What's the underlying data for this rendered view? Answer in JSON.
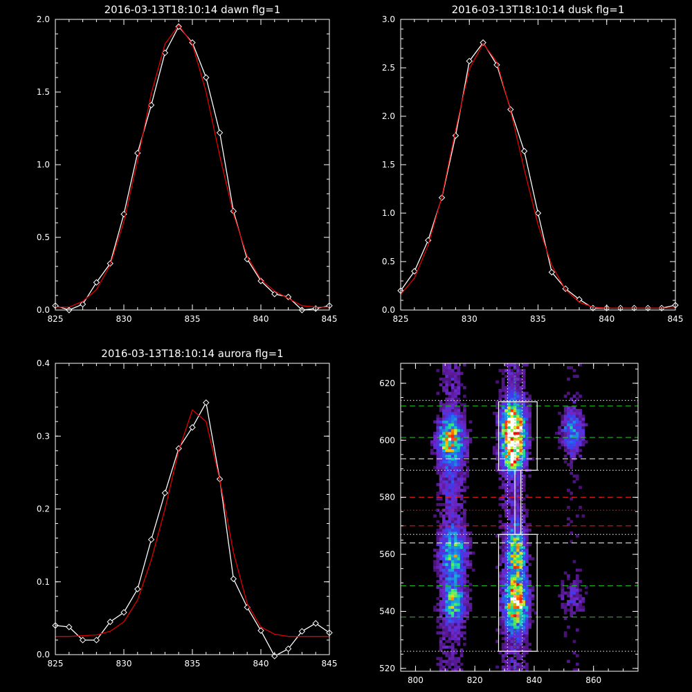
{
  "chart_data": [
    {
      "type": "line",
      "title": "2016-03-13T18:10:14 dawn flg=1",
      "xlim": [
        825,
        845
      ],
      "ylim": [
        0,
        2.0
      ],
      "xticks": [
        825,
        830,
        835,
        840,
        845
      ],
      "yticks": [
        0.0,
        0.5,
        1.0,
        1.5,
        2.0
      ],
      "ytick_labels": [
        "0.0",
        "0.5",
        "1.0",
        "1.5",
        "2.0"
      ],
      "series": [
        {
          "color": "#ffffff",
          "markers": "diamond",
          "x": [
            825,
            826,
            827,
            828,
            829,
            830,
            831,
            832,
            833,
            834,
            835,
            836,
            837,
            838,
            839,
            840,
            841,
            842,
            843,
            844,
            845
          ],
          "y": [
            0.03,
            0.0,
            0.04,
            0.19,
            0.32,
            0.66,
            1.08,
            1.41,
            1.77,
            1.95,
            1.84,
            1.6,
            1.22,
            0.68,
            0.35,
            0.2,
            0.11,
            0.09,
            0.0,
            0.01,
            0.03
          ]
        },
        {
          "color": "#e00000",
          "markers": "none",
          "x": [
            825,
            826,
            827,
            828,
            829,
            830,
            831,
            832,
            833,
            834,
            835,
            836,
            837,
            838,
            839,
            840,
            841,
            842,
            843,
            844,
            845
          ],
          "y": [
            0.02,
            0.02,
            0.06,
            0.14,
            0.31,
            0.61,
            1.03,
            1.49,
            1.83,
            1.96,
            1.83,
            1.5,
            1.06,
            0.66,
            0.37,
            0.21,
            0.13,
            0.08,
            0.03,
            0.02,
            0.02
          ]
        }
      ]
    },
    {
      "type": "line",
      "title": "2016-03-13T18:10:14 dusk flg=1",
      "xlim": [
        825,
        845
      ],
      "ylim": [
        0,
        3.0
      ],
      "xticks": [
        825,
        830,
        835,
        840,
        845
      ],
      "yticks": [
        0.0,
        0.5,
        1.0,
        1.5,
        2.0,
        2.5,
        3.0
      ],
      "ytick_labels": [
        "0.0",
        "0.5",
        "1.0",
        "1.5",
        "2.0",
        "2.5",
        "3.0"
      ],
      "series": [
        {
          "color": "#ffffff",
          "markers": "diamond",
          "x": [
            825,
            826,
            827,
            828,
            829,
            830,
            831,
            832,
            833,
            834,
            835,
            836,
            837,
            838,
            839,
            840,
            841,
            842,
            843,
            844,
            845
          ],
          "y": [
            0.2,
            0.4,
            0.72,
            1.16,
            1.8,
            2.57,
            2.76,
            2.53,
            2.07,
            1.64,
            1.0,
            0.39,
            0.22,
            0.11,
            0.02,
            0.02,
            0.02,
            0.02,
            0.02,
            0.02,
            0.05
          ]
        },
        {
          "color": "#e00000",
          "markers": "none",
          "x": [
            825,
            826,
            827,
            828,
            829,
            830,
            831,
            832,
            833,
            834,
            835,
            836,
            837,
            838,
            839,
            840,
            841,
            842,
            843,
            844,
            845
          ],
          "y": [
            0.16,
            0.33,
            0.67,
            1.17,
            1.86,
            2.49,
            2.75,
            2.56,
            2.06,
            1.45,
            0.88,
            0.46,
            0.21,
            0.08,
            0.03,
            0.02,
            0.02,
            0.02,
            0.02,
            0.02,
            0.02
          ]
        }
      ]
    },
    {
      "type": "line",
      "title": "2016-03-13T18:10:14 aurora flg=1",
      "xlim": [
        825,
        845
      ],
      "ylim": [
        0,
        0.4
      ],
      "xticks": [
        825,
        830,
        835,
        840,
        845
      ],
      "yticks": [
        0.0,
        0.1,
        0.2,
        0.3,
        0.4
      ],
      "ytick_labels": [
        "0.0",
        "0.1",
        "0.2",
        "0.3",
        "0.4"
      ],
      "series": [
        {
          "color": "#ffffff",
          "markers": "diamond",
          "x": [
            825,
            826,
            827,
            828,
            829,
            830,
            831,
            832,
            833,
            834,
            835,
            836,
            837,
            838,
            839,
            840,
            841,
            842,
            843,
            844,
            845
          ],
          "y": [
            0.04,
            0.038,
            0.02,
            0.02,
            0.045,
            0.058,
            0.09,
            0.158,
            0.222,
            0.283,
            0.312,
            0.346,
            0.241,
            0.104,
            0.065,
            0.033,
            -0.002,
            0.008,
            0.032,
            0.043,
            0.03
          ]
        },
        {
          "color": "#e00000",
          "markers": "none",
          "x": [
            825,
            826,
            827,
            828,
            829,
            830,
            831,
            832,
            833,
            834,
            835,
            836,
            837,
            838,
            839,
            840,
            841,
            842,
            843,
            844,
            845
          ],
          "y": [
            0.025,
            0.025,
            0.026,
            0.027,
            0.032,
            0.045,
            0.075,
            0.13,
            0.2,
            0.28,
            0.336,
            0.32,
            0.24,
            0.14,
            0.07,
            0.038,
            0.028,
            0.025,
            0.025,
            0.025,
            0.025
          ]
        }
      ]
    },
    {
      "type": "heatmap",
      "xlim": [
        795,
        875
      ],
      "ylim": [
        519,
        627
      ],
      "xticks": [
        800,
        820,
        840,
        860
      ],
      "yticks": [
        520,
        540,
        560,
        580,
        600,
        620
      ],
      "colormap": [
        "#000000",
        "#3c0a5a",
        "#6e28c8",
        "#3c3cf0",
        "#1e82e6",
        "#14c8c8",
        "#28e678",
        "#dcf028",
        "#ff8c00",
        "#ff0000",
        "#ffffff"
      ],
      "hotspots": [
        {
          "x": 812,
          "y": 600,
          "sx": 3.0,
          "sy": 5.0,
          "amp": 0.55
        },
        {
          "x": 813,
          "y": 560,
          "sx": 3.0,
          "sy": 6.0,
          "amp": 0.4
        },
        {
          "x": 813,
          "y": 543,
          "sx": 2.5,
          "sy": 4.0,
          "amp": 0.45
        },
        {
          "x": 833,
          "y": 605,
          "sx": 2.5,
          "sy": 5.0,
          "amp": 0.95
        },
        {
          "x": 833,
          "y": 595,
          "sx": 2.5,
          "sy": 4.0,
          "amp": 0.65
        },
        {
          "x": 834,
          "y": 560,
          "sx": 2.0,
          "sy": 6.0,
          "amp": 0.5
        },
        {
          "x": 834,
          "y": 543,
          "sx": 2.5,
          "sy": 6.0,
          "amp": 0.7
        },
        {
          "x": 853,
          "y": 603,
          "sx": 2.5,
          "sy": 5.0,
          "amp": 0.3
        },
        {
          "x": 853,
          "y": 545,
          "sx": 3.0,
          "sy": 4.0,
          "amp": 0.12
        },
        {
          "x": 812,
          "y": 585,
          "sx": 3.0,
          "sy": 6.0,
          "amp": 0.08
        }
      ],
      "boxes": [
        {
          "x0": 828,
          "x1": 841,
          "y0": 589.5,
          "y1": 613.5
        },
        {
          "x0": 828,
          "x1": 841,
          "y0": 526,
          "y1": 567
        },
        {
          "x0": 833.5,
          "x1": 835.5,
          "y0": 567,
          "y1": 589.5
        }
      ],
      "hlines": [
        {
          "y": 612,
          "color": "#22cc22",
          "dash": "dashed"
        },
        {
          "y": 601,
          "color": "#22cc22",
          "dash": "dashed"
        },
        {
          "y": 593.5,
          "color": "#ffffff",
          "dash": "dashed"
        },
        {
          "y": 580,
          "color": "#ee2020",
          "dash": "dashed"
        },
        {
          "y": 570,
          "color": "#ee2020",
          "dash": "dashed"
        },
        {
          "y": 564,
          "color": "#ffffff",
          "dash": "dashed"
        },
        {
          "y": 549,
          "color": "#22cc22",
          "dash": "dashed"
        },
        {
          "y": 538,
          "color": "#22cc22",
          "dash": "dashed"
        },
        {
          "y": 614,
          "color": "#ffffff",
          "dash": "dotted"
        },
        {
          "y": 589.5,
          "color": "#ffffff",
          "dash": "dotted"
        },
        {
          "y": 575.5,
          "color": "#ee2020",
          "dash": "dotted"
        },
        {
          "y": 567,
          "color": "#ffffff",
          "dash": "dotted"
        },
        {
          "y": 526,
          "color": "#ffffff",
          "dash": "dotted"
        }
      ],
      "vlines": [
        {
          "x": 831,
          "color": "#ffffff",
          "dash": "dotted"
        },
        {
          "x": 833.5,
          "color": "#22cc22",
          "dash": "dotted"
        },
        {
          "x": 836,
          "color": "#ffffff",
          "dash": "dotted"
        }
      ]
    }
  ]
}
